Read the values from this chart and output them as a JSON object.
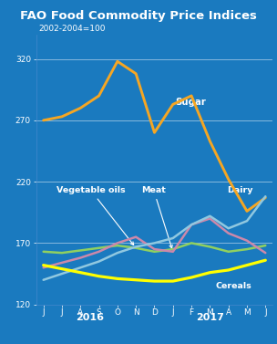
{
  "title": "FAO Food Commodity Price Indices",
  "subtitle": "2002-2004=100",
  "title_bg": "#2b3a8f",
  "plot_bg": "#1a7abf",
  "x_labels": [
    "J",
    "J",
    "A",
    "S",
    "O",
    "N",
    "D",
    "J",
    "F",
    "M",
    "A",
    "M",
    "J"
  ],
  "ylim": [
    120,
    340
  ],
  "yticks": [
    120,
    170,
    220,
    270,
    320
  ],
  "grid_color": "#4488cc",
  "sugar": [
    270,
    273,
    280,
    290,
    318,
    308,
    260,
    283,
    290,
    253,
    222,
    196,
    207
  ],
  "vegetable_oils": [
    163,
    162,
    164,
    166,
    168,
    166,
    163,
    165,
    170,
    167,
    163,
    165,
    168
  ],
  "meat": [
    150,
    154,
    158,
    163,
    170,
    175,
    165,
    163,
    185,
    190,
    178,
    172,
    162
  ],
  "dairy": [
    140,
    145,
    150,
    155,
    162,
    167,
    170,
    174,
    185,
    192,
    182,
    188,
    208
  ],
  "cereals": [
    152,
    149,
    146,
    143,
    141,
    140,
    139,
    139,
    142,
    146,
    148,
    152,
    156
  ],
  "sugar_color": "#f5a623",
  "veg_oil_color": "#90d060",
  "meat_color": "#cc88aa",
  "dairy_color": "#90c8e0",
  "cereals_color": "#ffff00",
  "text_color": "#ffffff",
  "line_width": 1.8,
  "title_fontsize": 9.5,
  "label_fontsize": 6.8,
  "subtitle_fontsize": 6.5,
  "tick_fontsize": 6.5,
  "year_fontsize": 8.0
}
